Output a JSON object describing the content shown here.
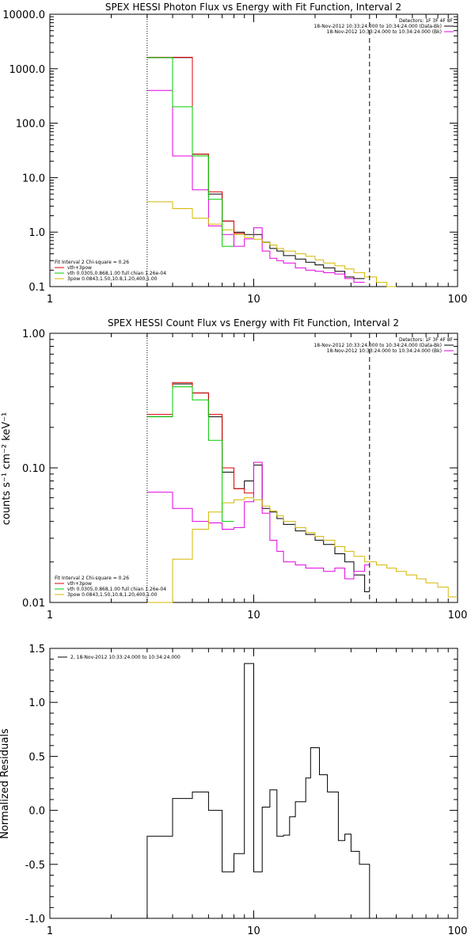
{
  "chart_data": [
    {
      "type": "line",
      "title": "SPEX HESSI Photon Flux vs Energy with Fit Function, Interval 2",
      "xlabel": "",
      "ylabel": "",
      "xscale": "log",
      "yscale": "log",
      "xlim": [
        1,
        100
      ],
      "ylim": [
        0.1,
        10000
      ],
      "xticks": [
        {
          "v": 1,
          "label": "1"
        },
        {
          "v": 10,
          "label": "10"
        },
        {
          "v": 100,
          "label": "100"
        }
      ],
      "yticks": [
        {
          "v": 0.1,
          "label": "0.1"
        },
        {
          "v": 1,
          "label": "1.0"
        },
        {
          "v": 10,
          "label": "10.0"
        },
        {
          "v": 100,
          "label": "100.0"
        },
        {
          "v": 1000,
          "label": "1000.0"
        },
        {
          "v": 10000,
          "label": "10000.0"
        }
      ],
      "vlines": [
        {
          "x": 3,
          "style": "dotted"
        },
        {
          "x": 37,
          "style": "dashed"
        }
      ],
      "legend_top": [
        {
          "text": "Detectors: 1F 3F 4F 8F",
          "color": "",
          "line": false
        },
        {
          "text": "18-Nov-2012 10:33:24.000 to 10:34:24.000 (Data-Bk)",
          "color": "#000000",
          "line": true
        },
        {
          "text": "18-Nov-2012 10:33:24.000 to 10:34:24.000 (Bk)",
          "color": "#e000e0",
          "line": true
        }
      ],
      "legend_bottom": [
        {
          "text": "Fit Interval 2   Chi-square = 0.26",
          "color": "",
          "line": false
        },
        {
          "text": "vth+3pow",
          "color": "#e00000",
          "line": true
        },
        {
          "text": "vth 0.0305,0.868,1.00  full chian 1.26e-04",
          "color": "#00cc00",
          "line": true
        },
        {
          "text": "3pow 0.0843,1.50,10.8,1.20,400,1.00",
          "color": "#d4b800",
          "line": true
        }
      ],
      "series": [
        {
          "color": "#000000",
          "edges": [
            3,
            4,
            5,
            6,
            7,
            8,
            9,
            10,
            11,
            12,
            13,
            14,
            16,
            18,
            20,
            22,
            25,
            28,
            31,
            35
          ],
          "values": [
            1600,
            1600,
            27,
            5,
            1.6,
            1.0,
            0.9,
            0.9,
            0.65,
            0.5,
            0.45,
            0.37,
            0.32,
            0.28,
            0.25,
            0.22,
            0.19,
            0.15,
            0.14
          ]
        },
        {
          "color": "#e000e0",
          "edges": [
            3,
            4,
            5,
            6,
            7,
            8,
            9,
            10,
            11,
            12,
            13,
            14,
            16,
            18,
            20,
            22,
            25,
            28,
            31,
            35
          ],
          "values": [
            400,
            25,
            6,
            1.3,
            0.9,
            0.55,
            0.75,
            1.2,
            0.45,
            0.33,
            0.3,
            0.27,
            0.22,
            0.2,
            0.19,
            0.18,
            0.17,
            0.14,
            0.12
          ]
        },
        {
          "color": "#d4b800",
          "edges": [
            3,
            4,
            5,
            6,
            7,
            8,
            9,
            10,
            11,
            12,
            13,
            14,
            16,
            18,
            20,
            22,
            25,
            28,
            31,
            35,
            40,
            45,
            50
          ],
          "values": [
            3.6,
            2.7,
            1.8,
            1.4,
            1.1,
            0.9,
            0.8,
            0.74,
            0.64,
            0.58,
            0.5,
            0.45,
            0.4,
            0.36,
            0.31,
            0.27,
            0.24,
            0.21,
            0.18,
            0.15,
            0.12,
            0.1
          ]
        },
        {
          "color": "#e00000",
          "edges": [
            3,
            4,
            5,
            6,
            7,
            8,
            9
          ],
          "values": [
            1620,
            1620,
            27,
            5.5,
            1.6,
            0.95
          ]
        },
        {
          "color": "#00cc00",
          "edges": [
            3,
            4,
            5,
            6,
            7,
            8
          ],
          "values": [
            1600,
            200,
            25,
            4.0,
            0.55
          ]
        }
      ]
    },
    {
      "type": "line",
      "title": "SPEX HESSI Count Flux vs Energy with Fit Function, Interval 2",
      "xlabel": "",
      "ylabel": "counts s⁻¹ cm⁻² keV⁻¹",
      "xscale": "log",
      "yscale": "log",
      "xlim": [
        1,
        100
      ],
      "ylim": [
        0.01,
        1
      ],
      "xticks": [
        {
          "v": 1,
          "label": "1"
        },
        {
          "v": 10,
          "label": "10"
        },
        {
          "v": 100,
          "label": "100"
        }
      ],
      "yticks": [
        {
          "v": 0.01,
          "label": "0.01"
        },
        {
          "v": 0.1,
          "label": "0.10"
        },
        {
          "v": 1,
          "label": "1.00"
        }
      ],
      "vlines": [
        {
          "x": 3,
          "style": "dotted"
        },
        {
          "x": 37,
          "style": "dashed"
        }
      ],
      "legend_top": [
        {
          "text": "Detectors: 1F 3F 4F 8F",
          "color": "",
          "line": false
        },
        {
          "text": "18-Nov-2012 10:33:24.000 to 10:34:24.000 (Data-Bk)",
          "color": "#000000",
          "line": true
        },
        {
          "text": "18-Nov-2012 10:33:24.000 to 10:34:24.000 (Bk)",
          "color": "#e000e0",
          "line": true
        }
      ],
      "legend_bottom": [
        {
          "text": "Fit Interval 2   Chi-square = 0.26",
          "color": "",
          "line": false
        },
        {
          "text": "vth+3pow",
          "color": "#e00000",
          "line": true
        },
        {
          "text": "vth 0.0305,0.868,1.00  full chian 1.26e-04",
          "color": "#00cc00",
          "line": true
        },
        {
          "text": "3pow 0.0843,1.50,10.8,1.20,400,1.00",
          "color": "#d4b800",
          "line": true
        }
      ],
      "series": [
        {
          "color": "#000000",
          "edges": [
            3,
            4,
            5,
            6,
            7,
            8,
            9,
            10,
            11,
            12,
            13,
            14,
            16,
            18,
            20,
            22,
            25,
            28,
            31,
            35,
            37
          ],
          "values": [
            0.24,
            0.42,
            0.36,
            0.24,
            0.093,
            0.07,
            0.08,
            0.105,
            0.05,
            0.047,
            0.042,
            0.038,
            0.034,
            0.032,
            0.029,
            0.027,
            0.023,
            0.02,
            0.016,
            0.012
          ]
        },
        {
          "color": "#e000e0",
          "edges": [
            3,
            4,
            5,
            6,
            7,
            8,
            9,
            10,
            11,
            12,
            13,
            14,
            16,
            18,
            20,
            22,
            25,
            28,
            31,
            35,
            37
          ],
          "values": [
            0.066,
            0.05,
            0.04,
            0.039,
            0.035,
            0.036,
            0.056,
            0.11,
            0.046,
            0.029,
            0.024,
            0.02,
            0.019,
            0.018,
            0.018,
            0.017,
            0.018,
            0.015,
            0.017,
            0.019
          ]
        },
        {
          "color": "#d4b800",
          "edges": [
            3,
            4,
            5,
            6,
            7,
            8,
            9,
            10,
            11,
            12,
            13,
            14,
            16,
            18,
            20,
            22,
            25,
            28,
            31,
            35,
            40,
            45,
            50,
            56,
            63,
            70,
            80,
            90,
            100
          ],
          "values": [
            0.009,
            0.021,
            0.035,
            0.047,
            0.055,
            0.058,
            0.06,
            0.058,
            0.052,
            0.048,
            0.044,
            0.04,
            0.036,
            0.033,
            0.031,
            0.029,
            0.026,
            0.024,
            0.022,
            0.02,
            0.019,
            0.018,
            0.017,
            0.016,
            0.015,
            0.014,
            0.013,
            0.011
          ]
        },
        {
          "color": "#e00000",
          "edges": [
            3,
            4,
            5,
            6,
            7,
            8,
            9,
            10
          ],
          "values": [
            0.25,
            0.43,
            0.36,
            0.25,
            0.1,
            0.07,
            0.065
          ]
        },
        {
          "color": "#00cc00",
          "edges": [
            3,
            4,
            5,
            6,
            7,
            8
          ],
          "values": [
            0.24,
            0.4,
            0.32,
            0.16,
            0.04
          ]
        }
      ]
    },
    {
      "type": "line",
      "title": "",
      "xlabel": "",
      "ylabel": "Normalized Residuals",
      "xscale": "log",
      "yscale": "linear",
      "xlim": [
        1,
        100
      ],
      "ylim": [
        -1.0,
        1.5
      ],
      "xticks": [
        {
          "v": 1,
          "label": "1"
        },
        {
          "v": 10,
          "label": "10"
        },
        {
          "v": 100,
          "label": "100"
        }
      ],
      "yticks": [
        {
          "v": -1.0,
          "label": "-1.0"
        },
        {
          "v": -0.5,
          "label": "-0.5"
        },
        {
          "v": 0.0,
          "label": "0.0"
        },
        {
          "v": 0.5,
          "label": "0.5"
        },
        {
          "v": 1.0,
          "label": "1.0"
        },
        {
          "v": 1.5,
          "label": "1.5"
        }
      ],
      "vlines": [],
      "legend_top": [
        {
          "text": "2, 18-Nov-2012 10:33:24.000 to 10:34:24.000",
          "color": "#000000",
          "line": true
        }
      ],
      "legend_bottom": [],
      "series": [
        {
          "color": "#000000",
          "edges": [
            3,
            3.5,
            4,
            4.5,
            5,
            5.5,
            6,
            6.5,
            7,
            7.5,
            8,
            8.5,
            9,
            9.5,
            10,
            10.5,
            11,
            11.5,
            12,
            13,
            14,
            15,
            16,
            17,
            18,
            19,
            20,
            21,
            22,
            23,
            24,
            25,
            26,
            27,
            28,
            29,
            30,
            31,
            33,
            35,
            37
          ],
          "values": [
            -0.24,
            -0.24,
            0.11,
            0.11,
            0.17,
            0.17,
            0.0,
            0.0,
            -0.57,
            -0.57,
            -0.4,
            -0.4,
            1.36,
            1.36,
            -0.57,
            -0.57,
            0.03,
            0.03,
            0.19,
            -0.24,
            -0.23,
            -0.06,
            0.08,
            0.08,
            0.3,
            0.58,
            0.58,
            0.33,
            0.33,
            0.17,
            0.17,
            0.17,
            -0.28,
            -0.28,
            -0.22,
            -0.22,
            -0.38,
            -0.38,
            -0.5,
            -0.5
          ],
          "drop_to_min": true
        }
      ]
    }
  ]
}
